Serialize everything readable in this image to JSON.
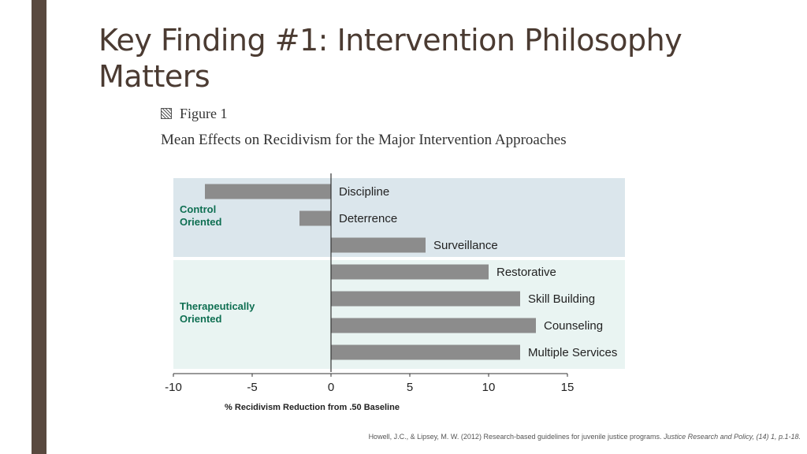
{
  "slide": {
    "title": "Key Finding #1: Intervention Philosophy Matters",
    "figure_label": "Figure 1",
    "figure_title": "Mean Effects on Recidivism for the Major Intervention Approaches",
    "citation": "Howell, J.C., & Lipsey, M. W. (2012) Research-based guidelines for juvenile justice programs.",
    "citation_journal": "Justice Research and Policy, (14) 1, p.1-18."
  },
  "colors": {
    "accent_bar": "#59493f",
    "title": "#4b3b32",
    "control_band": "#dbe6ec",
    "therapeutic_band": "#e9f4f2",
    "bar_fill": "#8c8c8c",
    "group_label": "#0f6f52"
  },
  "chart_data": {
    "type": "bar",
    "orientation": "horizontal",
    "xlabel": "% Recidivism Reduction from .50 Baseline",
    "xlim": [
      -10,
      15
    ],
    "xticks": [
      -10,
      -5,
      0,
      5,
      10,
      15
    ],
    "groups": [
      {
        "name": "Control Oriented",
        "name_lines": [
          "Control",
          "Oriented"
        ],
        "categories": [
          "Discipline",
          "Deterrence",
          "Surveillance"
        ],
        "values": [
          -8,
          -2,
          6
        ]
      },
      {
        "name": "Therapeutically Oriented",
        "name_lines": [
          "Therapeutically",
          "Oriented"
        ],
        "categories": [
          "Restorative",
          "Skill Building",
          "Counseling",
          "Multiple Services"
        ],
        "values": [
          10,
          12,
          13,
          12
        ]
      }
    ]
  }
}
